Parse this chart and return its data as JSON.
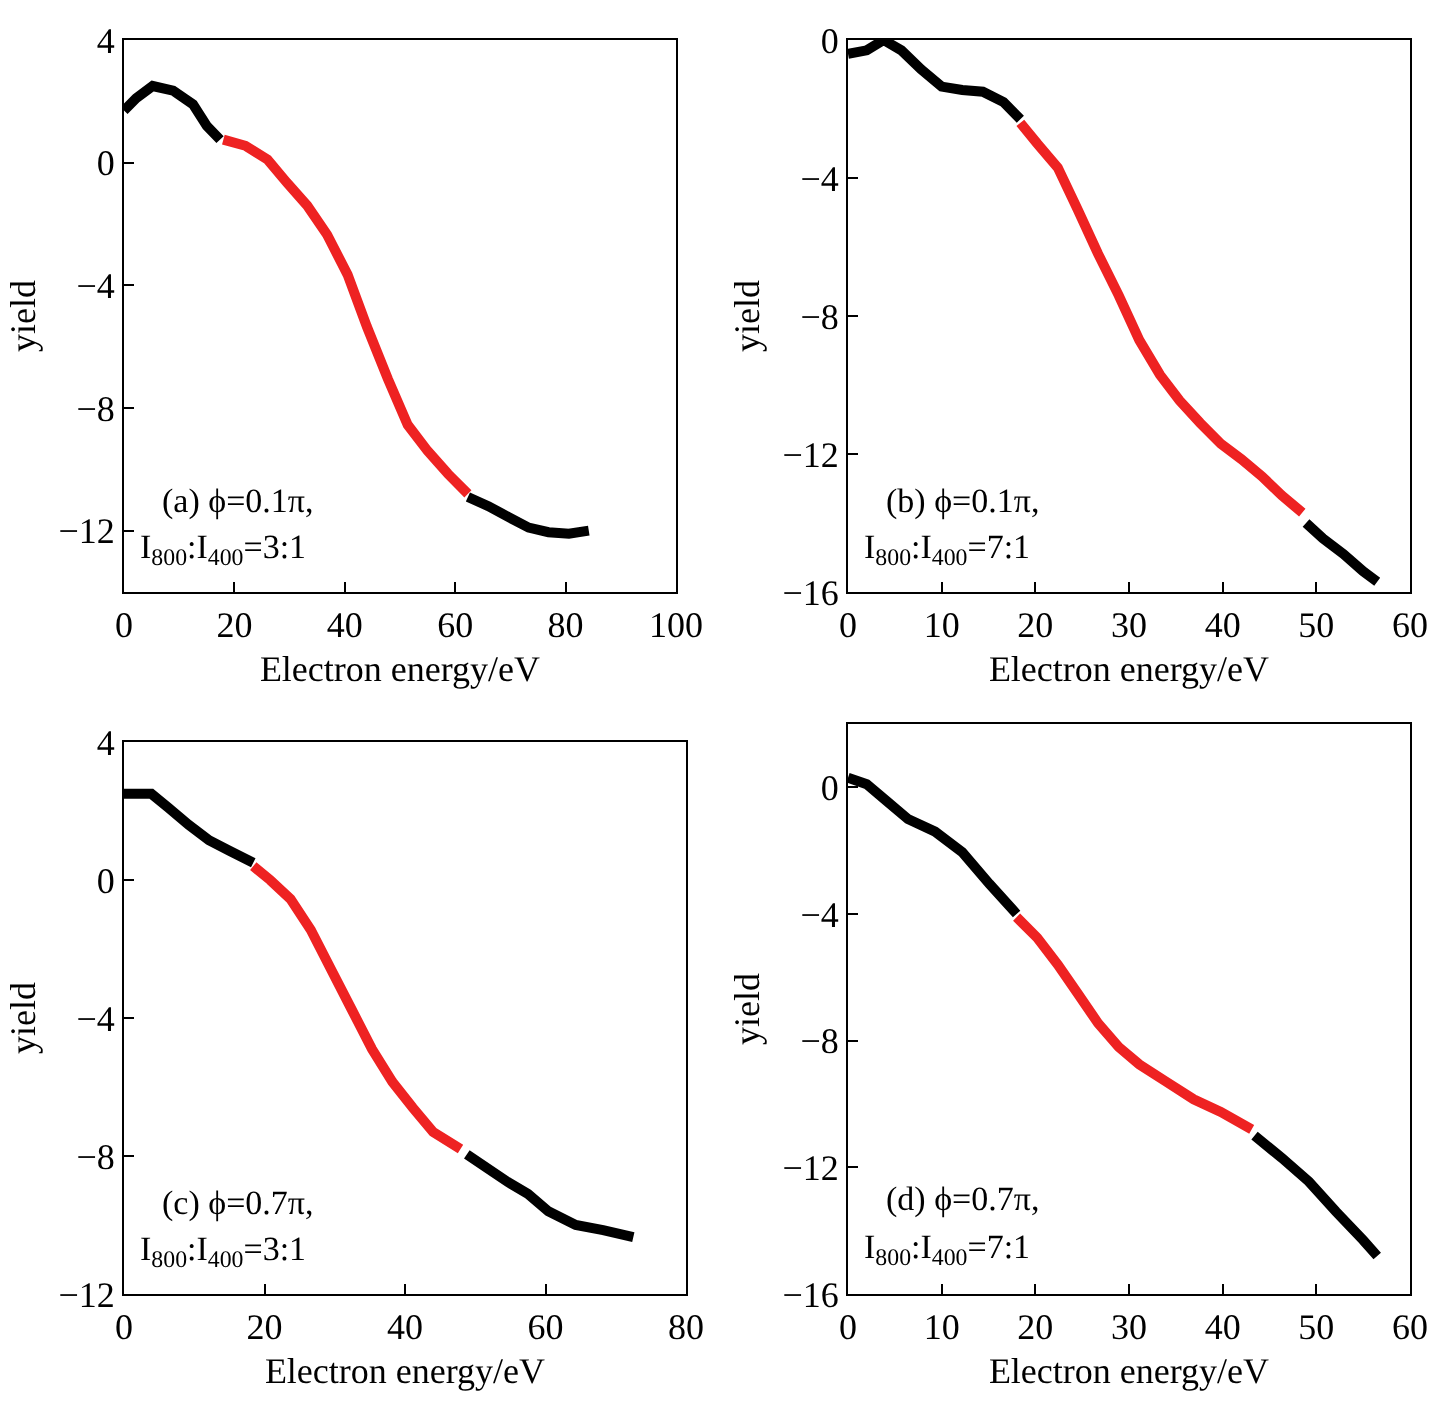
{
  "chart_data": [
    {
      "type": "line",
      "xlabel": "Electron energy/eV",
      "ylabel": "yield",
      "xlim": [
        0,
        100
      ],
      "xticks": [
        0,
        20,
        40,
        60,
        80,
        100
      ],
      "ylim": [
        -14,
        4
      ],
      "yticks": [
        -12,
        -8,
        -4,
        0,
        4
      ],
      "grid": false,
      "annotations": [
        "(a) ϕ=0.1π,",
        "I$_{800}$:I$_{400}$=3:1"
      ],
      "series": [
        {
          "color": "#000000",
          "x": [
            0,
            2.2,
            5.2,
            8.9,
            12.5,
            15,
            17.4
          ],
          "values": [
            1.7,
            2.1,
            2.5,
            2.35,
            1.9,
            1.2,
            0.75
          ]
        },
        {
          "color": "#ee2222",
          "x": [
            18,
            22,
            26,
            29.5,
            33.2,
            36.8,
            40.5,
            44,
            47.8,
            51.4,
            55,
            58.7,
            62.3
          ],
          "values": [
            0.75,
            0.55,
            0.1,
            -0.65,
            -1.4,
            -2.35,
            -3.65,
            -5.35,
            -7.05,
            -8.55,
            -9.4,
            -10.15,
            -10.8
          ]
        },
        {
          "color": "#000000",
          "x": [
            62.3,
            66,
            69.6,
            73.3,
            76.9,
            80.6,
            84.2
          ],
          "values": [
            -10.9,
            -11.2,
            -11.55,
            -11.9,
            -12.05,
            -12.1,
            -12
          ]
        }
      ]
    },
    {
      "type": "line",
      "xlabel": "Electron energy/eV",
      "ylabel": "yield",
      "xlim": [
        0,
        60
      ],
      "xticks": [
        0,
        10,
        20,
        30,
        40,
        50,
        60
      ],
      "ylim": [
        -16,
        0
      ],
      "yticks": [
        -16,
        -12,
        -8,
        -4,
        0
      ],
      "grid": false,
      "annotations": [
        "(b) ϕ=0.1π,",
        "I$_{800}$:I$_{400}$=7:1"
      ],
      "series": [
        {
          "color": "#000000",
          "x": [
            0,
            2,
            3.8,
            5.7,
            7.8,
            10,
            12.2,
            14.4,
            16.6,
            18.4
          ],
          "values": [
            -0.4,
            -0.3,
            0,
            -0.3,
            -0.85,
            -1.35,
            -1.45,
            -1.5,
            -1.8,
            -2.3
          ]
        },
        {
          "color": "#ee2222",
          "x": [
            18.4,
            20.2,
            22.4,
            24.5,
            26.7,
            28.9,
            31.1,
            33.3,
            35.4,
            37.6,
            39.8,
            42,
            44.2,
            46.3,
            48.5
          ],
          "values": [
            -2.4,
            -3,
            -3.7,
            -4.9,
            -6.2,
            -7.4,
            -8.7,
            -9.7,
            -10.45,
            -11.1,
            -11.7,
            -12.15,
            -12.65,
            -13.2,
            -13.7
          ]
        },
        {
          "color": "#000000",
          "x": [
            48.9,
            50.7,
            52.9,
            55,
            56.5
          ],
          "values": [
            -14,
            -14.45,
            -14.9,
            -15.4,
            -15.7
          ]
        }
      ]
    },
    {
      "type": "line",
      "xlabel": "Electron energy/eV",
      "ylabel": "yield",
      "xlim": [
        0,
        80
      ],
      "xticks": [
        0,
        20,
        40,
        60,
        80
      ],
      "ylim": [
        -12,
        4
      ],
      "yticks": [
        -12,
        -8,
        -4,
        0,
        4
      ],
      "grid": false,
      "annotations": [
        "(c) ϕ=0.7π,",
        "I$_{800}$:I$_{400}$=3:1"
      ],
      "series": [
        {
          "color": "#000000",
          "x": [
            0,
            3.9,
            6.3,
            9.2,
            12.1,
            15,
            18.4
          ],
          "values": [
            2.5,
            2.5,
            2.1,
            1.6,
            1.15,
            0.85,
            0.5
          ]
        },
        {
          "color": "#ee2222",
          "x": [
            18.4,
            20.8,
            23.7,
            26.6,
            29.5,
            32.4,
            35.3,
            38.2,
            41.1,
            44,
            47.9
          ],
          "values": [
            0.4,
            0,
            -0.55,
            -1.45,
            -2.6,
            -3.75,
            -4.9,
            -5.85,
            -6.6,
            -7.3,
            -7.8
          ]
        },
        {
          "color": "#000000",
          "x": [
            48.8,
            51.7,
            54.6,
            57.5,
            60.4,
            64.3,
            68.2,
            72.5
          ],
          "values": [
            -7.95,
            -8.35,
            -8.75,
            -9.1,
            -9.6,
            -10,
            -10.15,
            -10.35
          ]
        }
      ]
    },
    {
      "type": "line",
      "xlabel": "Electron energy/eV",
      "ylabel": "yield",
      "xlim": [
        0,
        60
      ],
      "xticks": [
        0,
        10,
        20,
        30,
        40,
        50,
        60
      ],
      "ylim": [
        -16,
        2
      ],
      "yticks": [
        -16,
        -12,
        -8,
        -4,
        0
      ],
      "grid": false,
      "annotations": [
        "(d) ϕ=0.7π,",
        "I$_{800}$:I$_{400}$=7:1"
      ],
      "series": [
        {
          "color": "#000000",
          "x": [
            0,
            2,
            4.2,
            6.4,
            9.3,
            12.2,
            15.1,
            18
          ],
          "values": [
            0.3,
            0.1,
            -0.45,
            -1,
            -1.4,
            -2.05,
            -3.05,
            -4
          ]
        },
        {
          "color": "#ee2222",
          "x": [
            18,
            20.2,
            22.4,
            24.5,
            26.7,
            28.9,
            31.1,
            34,
            36.9,
            39.8,
            43.1
          ],
          "values": [
            -4.1,
            -4.75,
            -5.6,
            -6.5,
            -7.45,
            -8.2,
            -8.75,
            -9.3,
            -9.85,
            -10.25,
            -10.8
          ]
        },
        {
          "color": "#000000",
          "x": [
            43.4,
            46.3,
            49.2,
            52.1,
            55,
            56.5
          ],
          "values": [
            -11,
            -11.7,
            -12.45,
            -13.4,
            -14.3,
            -14.8
          ]
        }
      ]
    }
  ]
}
